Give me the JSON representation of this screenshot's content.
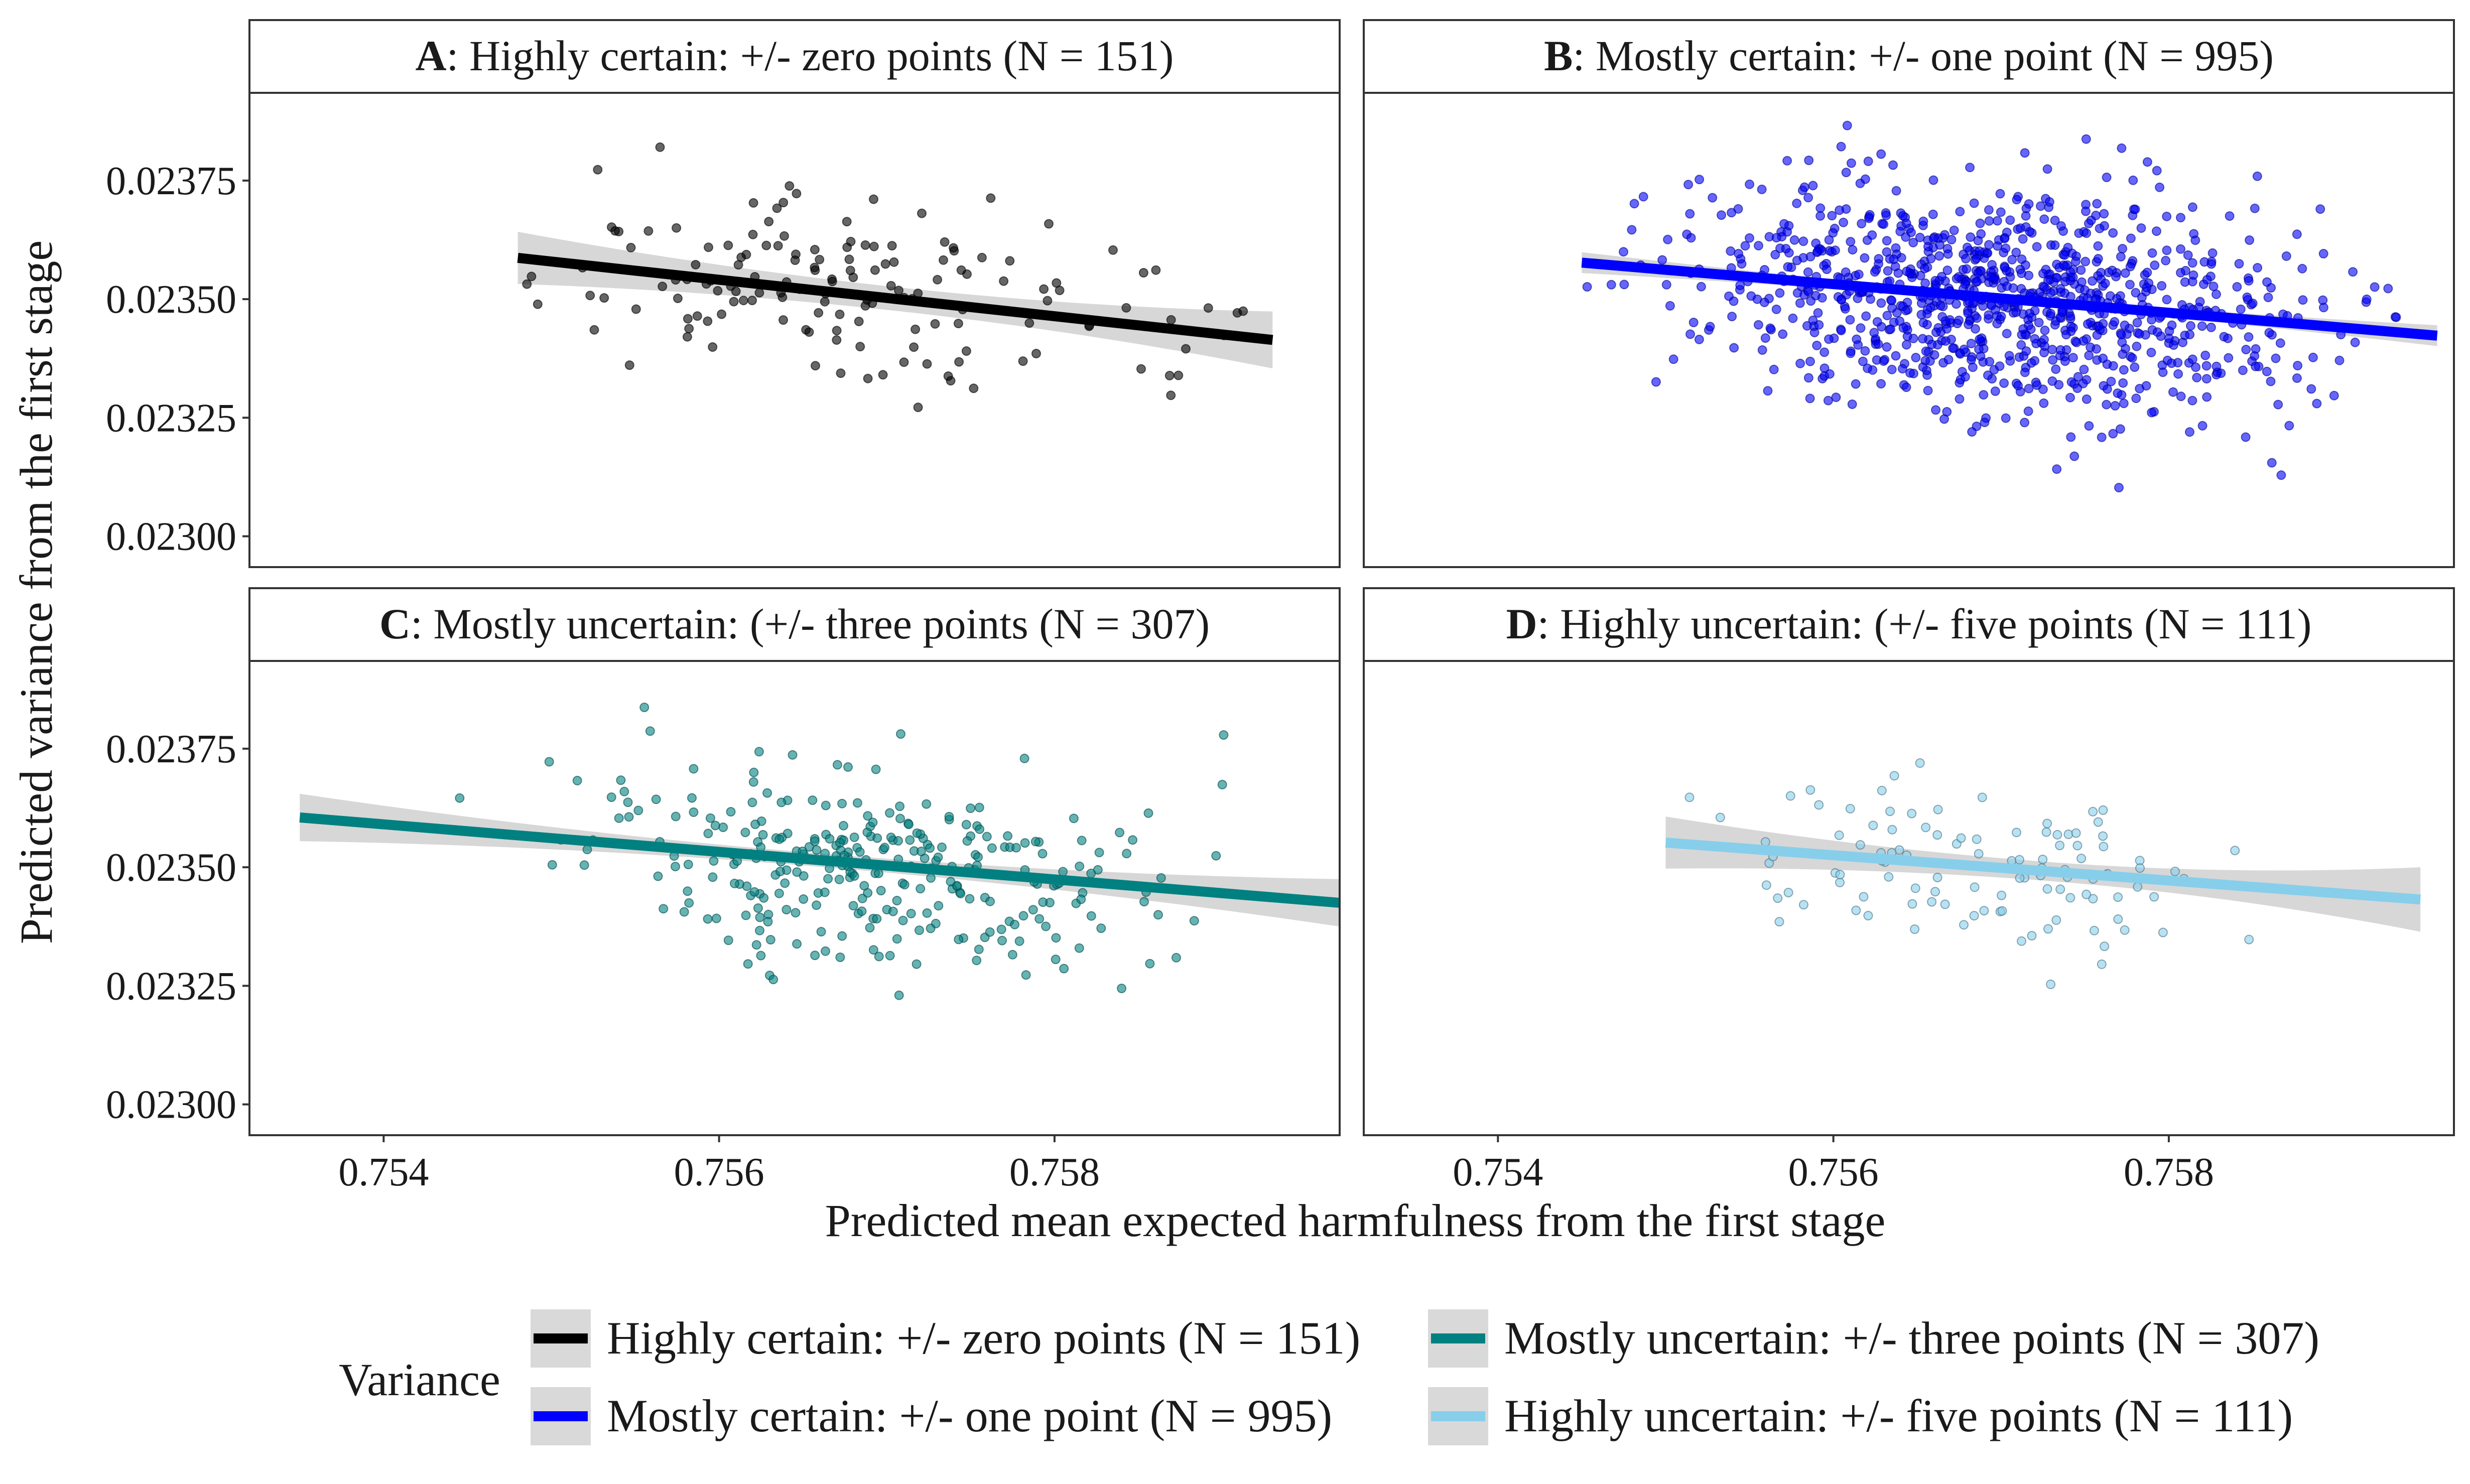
{
  "chart_data": {
    "type": "scatter",
    "layout": "facet-grid-2x2",
    "xlabel": "Predicted mean expected harmfulness from the first stage",
    "ylabel": "Predicted variance from the first stage",
    "xlim": [
      0.7532,
      0.7597
    ],
    "ylim": [
      0.022935,
      0.023935
    ],
    "x_ticks": [
      0.754,
      0.756,
      0.758
    ],
    "x_tick_labels": [
      "0.754",
      "0.756",
      "0.758"
    ],
    "y_ticks": [
      0.023,
      0.02325,
      0.0235,
      0.02375
    ],
    "y_tick_labels": [
      "0.02300",
      "0.02325",
      "0.02350",
      "0.02375"
    ],
    "grid": false,
    "legend": {
      "title": "Variance",
      "position": "bottom",
      "entries": [
        {
          "label": "Highly certain: +/- zero points (N = 151)",
          "color": "#000000"
        },
        {
          "label": "Mostly certain: +/- one point (N = 995)",
          "color": "#0000ff"
        },
        {
          "label": "Mostly uncertain: +/- three points (N = 307)",
          "color": "#008080"
        },
        {
          "label": "Highly uncertain: +/- five points (N = 111)",
          "color": "#87ceeb"
        }
      ]
    },
    "panels": [
      {
        "letter": "A",
        "strip_text": ": Highly certain: +/- zero points (N = 151)",
        "color": "#000000",
        "n": 151,
        "point_count_drawn": 151,
        "x_range": [
          0.7548,
          0.7593
        ],
        "y_spread": [
          0.02325,
          0.0239
        ],
        "point_center": [
          0.7568,
          0.0235
        ],
        "point_sd": [
          0.00095,
          0.0001
        ],
        "fit": {
          "x": [
            0.7548,
            0.7593
          ],
          "y": [
            0.023587,
            0.023414
          ]
        },
        "ci_halfwidth": [
          5.5e-05,
          2.5e-05,
          6e-05
        ]
      },
      {
        "letter": "B",
        "strip_text": ": Mostly certain: +/- one point (N = 995)",
        "color": "#0000ff",
        "n": 995,
        "point_count_drawn": 995,
        "x_range": [
          0.7545,
          0.7596
        ],
        "y_spread": [
          0.02297,
          0.02389
        ],
        "point_center": [
          0.757,
          0.0235
        ],
        "point_sd": [
          0.0009,
          0.000115
        ],
        "fit": {
          "x": [
            0.7545,
            0.7596
          ],
          "y": [
            0.023577,
            0.023423
          ]
        },
        "ci_halfwidth": [
          2.2e-05,
          8e-06,
          2.2e-05
        ]
      },
      {
        "letter": "C",
        "strip_text": ": Mostly uncertain: (+/- three points (N = 307)",
        "color": "#008080",
        "n": 307,
        "point_count_drawn": 307,
        "x_range": [
          0.7535,
          0.7597
        ],
        "y_spread": [
          0.0232,
          0.0239
        ],
        "point_center": [
          0.7569,
          0.0235
        ],
        "point_sd": [
          0.0009,
          0.00011
        ],
        "fit": {
          "x": [
            0.7535,
            0.7597
          ],
          "y": [
            0.023605,
            0.023425
          ]
        },
        "ci_halfwidth": [
          5e-05,
          1.4e-05,
          5e-05
        ]
      },
      {
        "letter": "D",
        "strip_text": ": Highly uncertain: (+/- five points (N = 111)",
        "color": "#87ceeb",
        "n": 111,
        "point_count_drawn": 111,
        "x_range": [
          0.755,
          0.7595
        ],
        "y_spread": [
          0.02322,
          0.02376
        ],
        "point_center": [
          0.7569,
          0.0235
        ],
        "point_sd": [
          0.00085,
          0.0001
        ],
        "fit": {
          "x": [
            0.755,
            0.7595
          ],
          "y": [
            0.023552,
            0.023432
          ]
        },
        "ci_halfwidth": [
          5.5e-05,
          2e-05,
          6.8e-05
        ]
      }
    ]
  }
}
